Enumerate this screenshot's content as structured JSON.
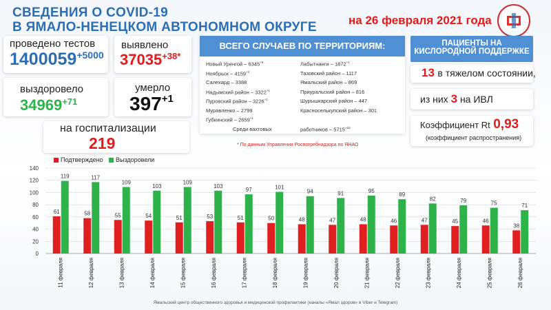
{
  "header": {
    "title_line1": "СВЕДЕНИЯ О COVID-19",
    "title_line2": "В ЯМАЛО-НЕНЕЦКОМ АВТОНОМНОМ ОКРУГЕ",
    "date": "на 26 февраля 2021 года"
  },
  "tests": {
    "label": "проведено тестов",
    "value": "1400059",
    "delta": "+5000"
  },
  "detected": {
    "label": "выявлено",
    "value": "37035",
    "delta": "+38*"
  },
  "recovered": {
    "label": "выздоровело",
    "value": "34969",
    "delta": "+71"
  },
  "died": {
    "label": "умерло",
    "value": "397",
    "delta": "+1"
  },
  "hospital": {
    "label": "на госпитализации",
    "value": "219"
  },
  "territories": {
    "header": "ВСЕГО СЛУЧАЕВ ПО ТЕРРИТОРИЯМ:",
    "left": [
      {
        "name": "Новый Уренгой",
        "value": "6345",
        "delta": "+6"
      },
      {
        "name": "Ноябрьск",
        "value": "4159",
        "delta": "+4"
      },
      {
        "name": "Салехард",
        "value": "3388",
        "delta": ""
      },
      {
        "name": "Надымский район",
        "value": "3322",
        "delta": "+1"
      },
      {
        "name": "Пуровский район",
        "value": "3226",
        "delta": "+1"
      },
      {
        "name": "Муравленко",
        "value": "2799",
        "delta": ""
      },
      {
        "name": "Губкинский",
        "value": "2659",
        "delta": "+1"
      }
    ],
    "right": [
      {
        "name": "Лабытнанги",
        "value": "1872",
        "delta": "+1"
      },
      {
        "name": "Тазовский район",
        "value": "1117",
        "delta": ""
      },
      {
        "name": "Ямальский район",
        "value": "869",
        "delta": ""
      },
      {
        "name": "Приуральский район",
        "value": "816",
        "delta": ""
      },
      {
        "name": "Шурышкарский район",
        "value": "447",
        "delta": ""
      },
      {
        "name": "Красноселькупский район",
        "value": "301",
        "delta": ""
      }
    ],
    "shift_left": "Среди вахтовых",
    "shift_right": "работников",
    "shift_value": "5715",
    "shift_delta": "+22",
    "footnote": "* По данным Управления Роспотребнадзора по ЯНАО"
  },
  "oxygen": {
    "header_line1": "ПАЦИЕНТЫ НА",
    "header_line2": "КИСЛОРОДНОЙ ПОДДЕРЖКЕ",
    "severe_value": "13",
    "severe_text": "в тяжелом состоянии,",
    "ivl_prefix": "из них",
    "ivl_value": "3",
    "ivl_suffix": "на ИВЛ"
  },
  "rt": {
    "label": "Коэффициент Rt",
    "value": "0,93",
    "sublabel": "(коэффициент распространения)"
  },
  "footer": "Ямальский центр общественного здоровья и медицинской профилактики (каналы «Ямал здоров» в Viber и Telegram)",
  "colors": {
    "confirmed": "#e02020",
    "recovered": "#2db34a",
    "title": "#2a6fb5",
    "panel": "#4f8fd4"
  },
  "chart_data": {
    "type": "bar",
    "categories": [
      "11 февраля",
      "12 февраля",
      "13 февраля",
      "14 февраля",
      "15 февраля",
      "16 февраля",
      "17 февраля",
      "18 февраля",
      "19 февраля",
      "20 февраля",
      "21 февраля",
      "22 февраля",
      "23 февраля",
      "24 февраля",
      "25 февраля",
      "26 февраля"
    ],
    "series": [
      {
        "name": "Подтверждено",
        "color": "#e02020",
        "values": [
          61,
          58,
          55,
          54,
          51,
          53,
          51,
          50,
          48,
          47,
          48,
          46,
          47,
          45,
          46,
          38
        ]
      },
      {
        "name": "Выздоровели",
        "color": "#2db34a",
        "values": [
          119,
          117,
          109,
          103,
          109,
          103,
          97,
          101,
          94,
          91,
          95,
          89,
          82,
          79,
          75,
          71
        ]
      }
    ],
    "yticks": [
      0,
      20,
      40,
      60,
      80,
      100,
      120,
      140
    ],
    "ylim": [
      0,
      140
    ],
    "legend": "top-left",
    "grid": true
  }
}
